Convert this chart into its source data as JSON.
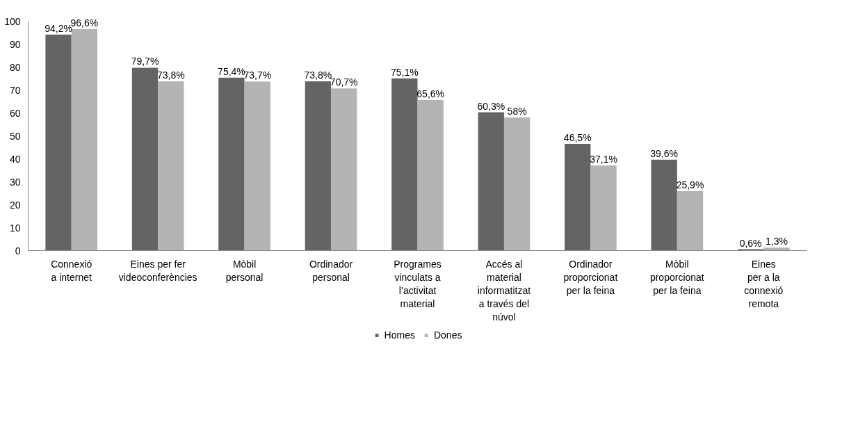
{
  "chart_data": {
    "type": "bar",
    "categories": [
      "Connexió\na internet",
      "Eines per fer\nvideoconferències",
      "Mòbil\npersonal",
      "Ordinador\npersonal",
      "Programes\nvinculats a\nl’activitat\nmaterial",
      "Accés al\nmaterial\ninformatitzat\na través del\nnúvol",
      "Ordinador\nproporcionat\nper la feina",
      "Mòbil\nproporcionat\nper la feina",
      "Eines\nper a la\nconnexió\nremota"
    ],
    "series": [
      {
        "name": "Homes",
        "color": "#646464",
        "values": [
          94.2,
          79.7,
          75.4,
          73.8,
          75.1,
          60.3,
          46.5,
          39.6,
          0.6
        ],
        "value_labels": [
          "94,2%",
          "79,7%",
          "75,4%",
          "73,8%",
          "75,1%",
          "60,3%",
          "46,5%",
          "39,6%",
          "0,6%"
        ]
      },
      {
        "name": "Dones",
        "color": "#b4b4b4",
        "values": [
          96.6,
          73.8,
          73.7,
          70.7,
          65.6,
          58,
          37.1,
          25.9,
          1.3
        ],
        "value_labels": [
          "96,6%",
          "73,8%",
          "73,7%",
          "70,7%",
          "65,6%",
          "58%",
          "37,1%",
          "25,9%",
          "1,3%"
        ]
      }
    ],
    "ylim": [
      0,
      100
    ],
    "yticks": [
      0,
      10,
      20,
      30,
      40,
      50,
      60,
      70,
      80,
      90,
      100
    ],
    "grid": false,
    "legend": "bottom"
  }
}
